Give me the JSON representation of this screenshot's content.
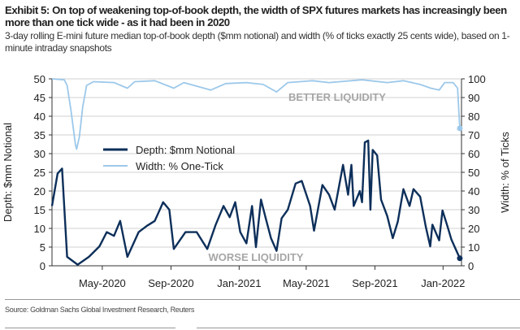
{
  "header": {
    "title": "Exhibit 5: On top of weakening top-of-book depth, the width of SPX futures markets has increasingly been more than one tick wide - as it had been in 2020",
    "subtitle": "3-day rolling E-mini future median top-of-book depth ($mm notional) and width (% of ticks exactly 25 cents wide), based on 1-minute intraday snapshots"
  },
  "footer": {
    "source": "Source: Goldman Sachs Global Investment Research, Reuters"
  },
  "chart_data": {
    "type": "line",
    "title": "",
    "xlabel": "",
    "ylabel": "Depth: $mm Notional",
    "y2label": "Width: % of Ticks",
    "xlim": [
      "2020-02-01",
      "2022-02-03"
    ],
    "ylim": [
      0,
      50
    ],
    "y2lim": [
      0,
      100
    ],
    "yticks": [
      "0",
      "5",
      "10",
      "15",
      "20",
      "25",
      "30",
      "35",
      "40",
      "45",
      "50"
    ],
    "y2ticks": [
      "0",
      "10",
      "20",
      "30",
      "40",
      "50",
      "60",
      "70",
      "80",
      "90",
      "100"
    ],
    "xticks": [
      {
        "date": "2020-05-01",
        "label": "May-2020"
      },
      {
        "date": "2020-09-01",
        "label": "Sep-2020"
      },
      {
        "date": "2021-01-01",
        "label": "Jan-2021"
      },
      {
        "date": "2021-05-01",
        "label": "May-2021"
      },
      {
        "date": "2021-09-01",
        "label": "Sep-2021"
      },
      {
        "date": "2022-01-01",
        "label": "Jan-2022"
      }
    ],
    "grid": true,
    "legend_position": "upper-left",
    "annotations": [
      "BETTER LIQUIDITY",
      "WORSE LIQUIDITY"
    ],
    "colors": {
      "depth": "#0d2f5a",
      "width": "#9cc8ea",
      "grid": "#d9d9d9",
      "annotation": "#a6a6a6"
    },
    "series": [
      {
        "name": "Depth: $mm Notional",
        "axis": "left",
        "x": [
          "2020-02-01",
          "2020-02-11",
          "2020-02-19",
          "2020-02-28",
          "2020-03-18",
          "2020-04-07",
          "2020-04-26",
          "2020-05-09",
          "2020-05-22",
          "2020-06-02",
          "2020-06-15",
          "2020-07-05",
          "2020-07-20",
          "2020-08-03",
          "2020-08-18",
          "2020-08-29",
          "2020-09-06",
          "2020-09-27",
          "2020-10-17",
          "2020-11-05",
          "2020-11-20",
          "2020-12-04",
          "2020-12-15",
          "2020-12-25",
          "2021-01-03",
          "2021-01-14",
          "2021-01-24",
          "2021-01-31",
          "2021-02-09",
          "2021-02-17",
          "2021-02-27",
          "2021-03-09",
          "2021-03-18",
          "2021-03-29",
          "2021-04-12",
          "2021-04-23",
          "2021-05-08",
          "2021-05-15",
          "2021-05-30",
          "2021-06-11",
          "2021-06-21",
          "2021-07-06",
          "2021-07-15",
          "2021-07-21",
          "2021-07-25",
          "2021-08-05",
          "2021-08-09",
          "2021-08-14",
          "2021-08-20",
          "2021-08-24",
          "2021-08-28",
          "2021-09-05",
          "2021-09-12",
          "2021-09-23",
          "2021-10-03",
          "2021-10-12",
          "2021-10-22",
          "2021-11-02",
          "2021-11-09",
          "2021-11-21",
          "2021-12-01",
          "2021-12-09",
          "2021-12-13",
          "2021-12-25",
          "2021-12-31",
          "2022-01-09",
          "2022-01-16",
          "2022-01-31"
        ],
        "values": [
          16,
          24.7,
          26,
          2.4,
          0.3,
          2.4,
          5.2,
          9,
          8,
          12,
          2.4,
          9,
          10.7,
          12,
          17,
          15,
          4.5,
          9,
          9,
          4.5,
          11,
          16,
          13,
          17,
          9,
          6,
          16,
          5,
          17.7,
          13,
          7.4,
          4,
          12.7,
          15,
          22,
          22.7,
          16,
          9.4,
          21.6,
          19,
          15,
          27,
          19,
          27,
          16,
          20,
          17,
          33,
          33.5,
          15,
          31,
          29.5,
          17.7,
          13.3,
          7.4,
          11.8,
          20.5,
          16,
          20.5,
          18.5,
          10.5,
          5.2,
          11,
          6.8,
          14.8,
          10.5,
          7,
          2
        ]
      },
      {
        "name": "Width: % One-Tick",
        "axis": "right",
        "x": [
          "2020-02-01",
          "2020-02-23",
          "2020-02-28",
          "2020-03-06",
          "2020-03-14",
          "2020-03-16",
          "2020-03-21",
          "2020-03-27",
          "2020-04-03",
          "2020-04-15",
          "2020-05-22",
          "2020-06-15",
          "2020-06-28",
          "2020-08-03",
          "2020-09-06",
          "2020-09-24",
          "2020-11-11",
          "2020-12-08",
          "2021-01-14",
          "2021-02-13",
          "2021-03-09",
          "2021-03-29",
          "2021-05-12",
          "2021-06-11",
          "2021-08-09",
          "2021-09-23",
          "2021-10-22",
          "2021-11-21",
          "2021-12-10",
          "2021-12-25",
          "2022-01-04",
          "2022-01-19",
          "2022-01-27",
          "2022-01-31"
        ],
        "values": [
          100,
          99.5,
          96.5,
          83,
          64.6,
          62.4,
          69,
          85,
          96.5,
          98.5,
          98,
          95,
          98.5,
          99,
          95,
          98,
          94,
          97.5,
          98,
          97,
          93,
          98,
          99,
          98,
          99.5,
          98,
          99,
          97,
          95,
          94,
          98,
          98,
          95,
          73.5
        ]
      }
    ]
  }
}
